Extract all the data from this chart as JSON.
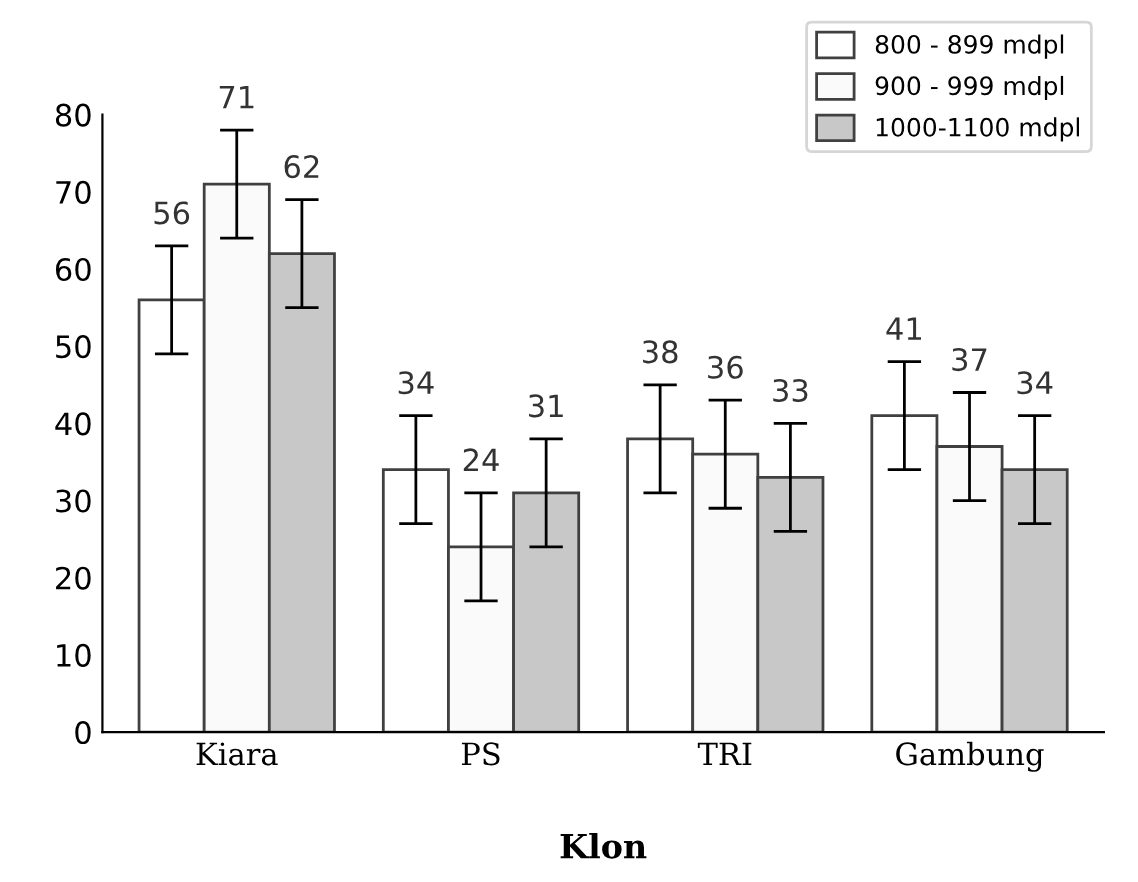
{
  "chart_data": {
    "type": "bar",
    "xlabel": "Klon",
    "categories": [
      "Kiara",
      "PS",
      "TRI",
      "Gambung"
    ],
    "series": [
      {
        "name": "800 - 899 mdpl",
        "color": "#ffffff",
        "values": [
          56,
          34,
          38,
          41
        ],
        "errors": [
          7,
          7,
          7,
          7
        ]
      },
      {
        "name": "900 - 999 mdpl",
        "color": "#fafafa",
        "values": [
          71,
          24,
          36,
          37
        ],
        "errors": [
          7,
          7,
          7,
          7
        ]
      },
      {
        "name": "1000-1100 mdpl",
        "color": "#c8c8c8",
        "values": [
          62,
          31,
          33,
          34
        ],
        "errors": [
          7,
          7,
          7,
          7
        ]
      }
    ],
    "ylim": [
      0,
      80
    ],
    "yticks": [
      0,
      10,
      20,
      30,
      40,
      50,
      60,
      70,
      80
    ],
    "data_labels": true,
    "grid": false,
    "legend": "top right"
  }
}
